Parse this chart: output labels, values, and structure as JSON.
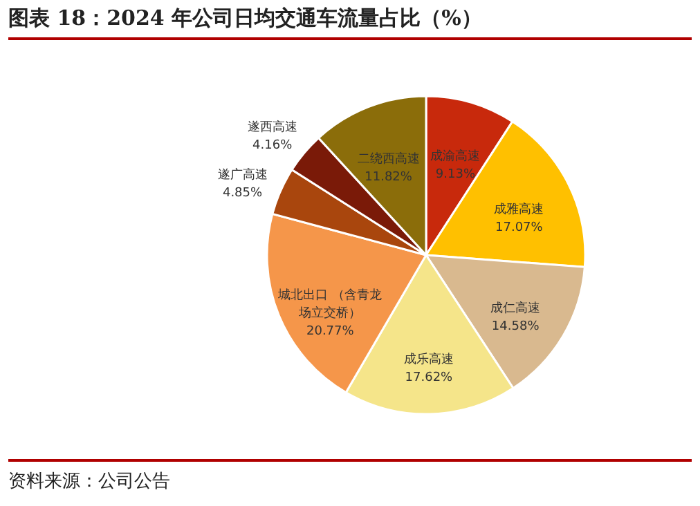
{
  "chart_data": {
    "type": "pie",
    "title": "图表 18：2024 年公司日均交通车流量占比（%）",
    "categories": [
      "成渝高速",
      "成雅高速",
      "成仁高速",
      "成乐高速",
      "城北出口 （含青龙场立交桥）",
      "遂广高速",
      "遂西高速",
      "二绕西高速"
    ],
    "values": [
      9.13,
      17.07,
      14.58,
      17.62,
      20.77,
      4.85,
      4.16,
      11.82
    ],
    "value_labels": [
      "9.13%",
      "17.07%",
      "14.58%",
      "17.62%",
      "20.77%",
      "4.85%",
      "4.16%",
      "11.82%"
    ],
    "colors": [
      "#c8290c",
      "#ffc000",
      "#d9b98f",
      "#f5e58a",
      "#f5964a",
      "#a9460d",
      "#7a1a08",
      "#8b6d0a"
    ],
    "annotations": [
      "资料来源：公司公告"
    ]
  }
}
